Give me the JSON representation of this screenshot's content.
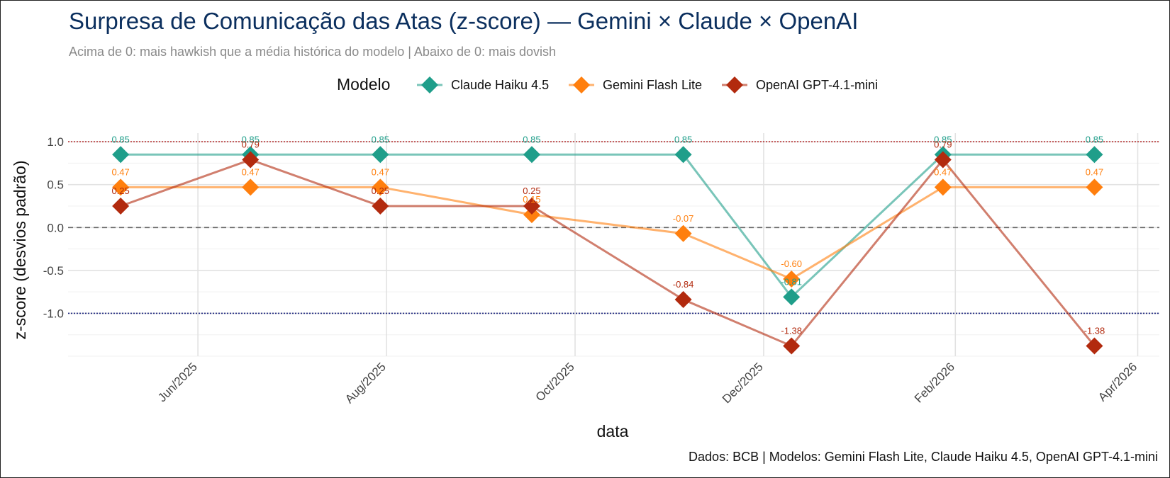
{
  "title": "Surpresa de Comunicação das Atas (z-score) — Gemini × Claude × OpenAI",
  "subtitle": "Acima de 0: mais hawkish que a média histórica do modelo | Abaixo de 0: mais dovish",
  "caption": "Dados: BCB | Modelos: Gemini Flash Lite, Claude Haiku 4.5, OpenAI GPT-4.1-mini",
  "chart_data": {
    "type": "line",
    "title": "Surpresa de Comunicação das Atas (z-score) — Gemini × Claude × OpenAI",
    "xlabel": "data",
    "ylabel": "z-score (desvios padrão)",
    "legend_title": "Modelo",
    "legend_position": "top",
    "x": [
      "2025-05-07",
      "2025-06-18",
      "2025-07-30",
      "2025-09-17",
      "2025-11-05",
      "2025-12-10",
      "2026-01-28",
      "2026-03-18"
    ],
    "xlim": [
      "2025-04-20",
      "2026-04-08"
    ],
    "x_ticks": [
      "2025-06-01",
      "2025-08-01",
      "2025-10-01",
      "2025-12-01",
      "2026-02-01",
      "2026-04-01"
    ],
    "x_tick_labels": [
      "Jun/2025",
      "Aug/2025",
      "Oct/2025",
      "Dec/2025",
      "Feb/2026",
      "Apr/2026"
    ],
    "ylim": [
      -1.5,
      1.1
    ],
    "y_ticks": [
      1.0,
      0.5,
      0.0,
      -0.5,
      -1.0
    ],
    "y_tick_labels": [
      "1.0",
      "0.5",
      "0.0",
      "-0.5",
      "-1.0"
    ],
    "reference_lines": [
      {
        "y": 1.0,
        "style": "dotted",
        "color": "#b22222"
      },
      {
        "y": 0.0,
        "style": "dashed",
        "color": "#666666"
      },
      {
        "y": -1.0,
        "style": "dotted",
        "color": "#1a237e"
      }
    ],
    "grid": true,
    "series": [
      {
        "name": "Claude Haiku 4.5",
        "color": "#1f9e8a",
        "values": [
          0.85,
          0.85,
          0.85,
          0.85,
          0.85,
          -0.81,
          0.85,
          0.85
        ],
        "labels": [
          "0.85",
          "0.85",
          "0.85",
          "0.85",
          "0.85",
          "-0.81",
          "0.85",
          "0.85"
        ]
      },
      {
        "name": "Gemini Flash Lite",
        "color": "#ff7f0e",
        "values": [
          0.47,
          0.47,
          0.47,
          0.15,
          -0.07,
          -0.6,
          0.47,
          0.47
        ],
        "labels": [
          "0.47",
          "0.47",
          "0.47",
          "0.15",
          "-0.07",
          "-0.60",
          "0.47",
          "0.47"
        ]
      },
      {
        "name": "OpenAI GPT-4.1-mini",
        "color": "#b22a0e",
        "values": [
          0.25,
          0.79,
          0.25,
          0.25,
          -0.84,
          -1.38,
          0.79,
          -1.38
        ],
        "labels": [
          "0.25",
          "0.79",
          "0.25",
          "0.25",
          "-0.84",
          "-1.38",
          "0.79",
          "-1.38"
        ]
      }
    ]
  }
}
